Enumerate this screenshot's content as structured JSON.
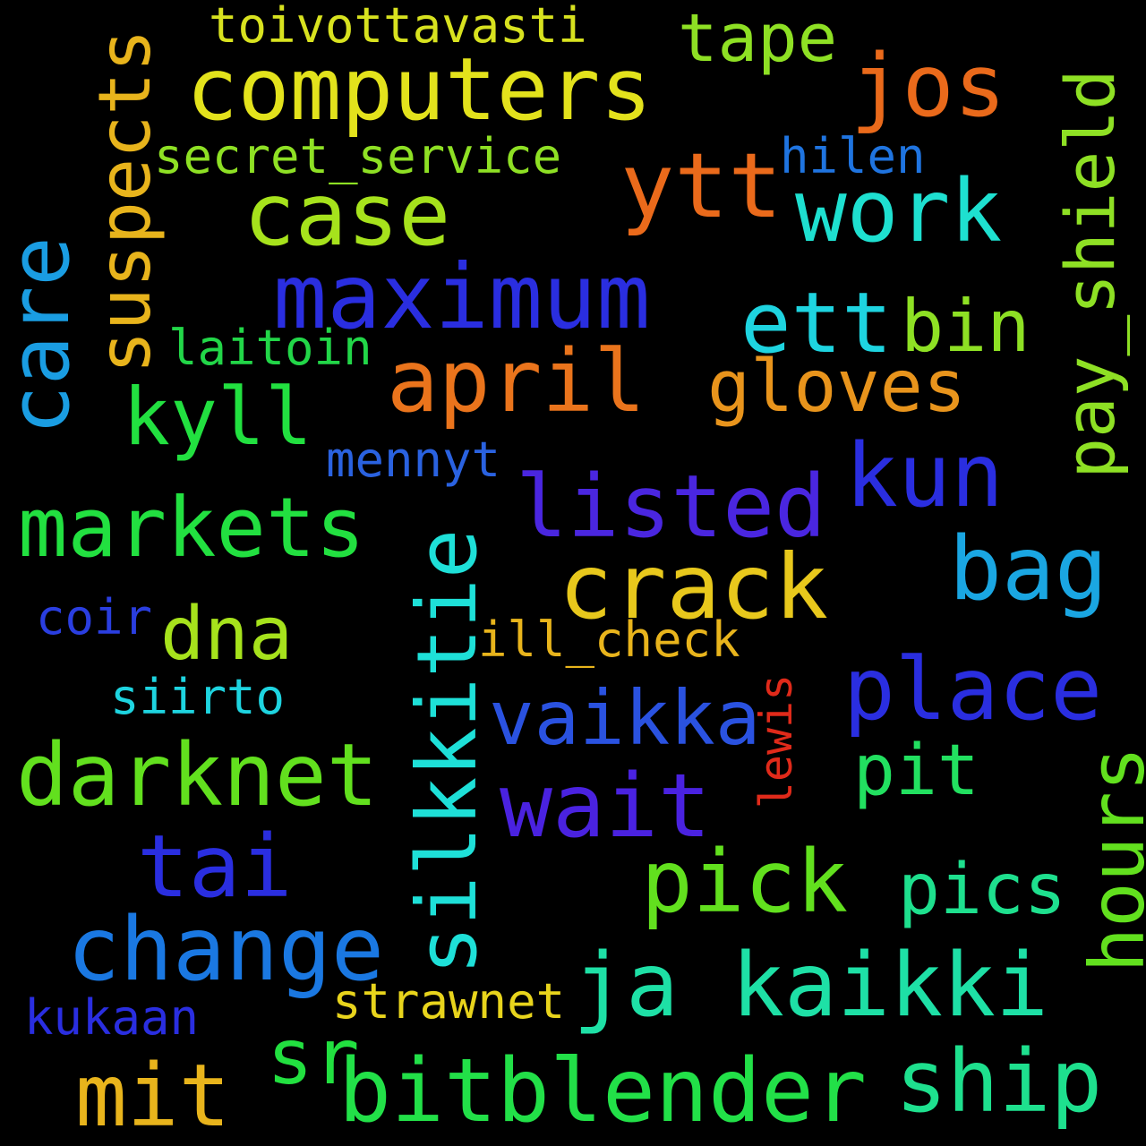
{
  "words": [
    {
      "text": "toivottavasti",
      "color": "#d8e21f"
    },
    {
      "text": "computers",
      "color": "#e3e21c"
    },
    {
      "text": "tape",
      "color": "#8ee024"
    },
    {
      "text": "jos",
      "color": "#ea6a1b"
    },
    {
      "text": "secret_service",
      "color": "#8ee024"
    },
    {
      "text": "hilen",
      "color": "#1f74e0"
    },
    {
      "text": "ytt",
      "color": "#ea6a1b"
    },
    {
      "text": "case",
      "color": "#a6e21c"
    },
    {
      "text": "work",
      "color": "#1ee0d0"
    },
    {
      "text": "suspects",
      "color": "#e8b41c"
    },
    {
      "text": "care",
      "color": "#1a9de2"
    },
    {
      "text": "maximum",
      "color": "#2a2ee0"
    },
    {
      "text": "ett",
      "color": "#1ed4e0"
    },
    {
      "text": "bin",
      "color": "#8ee024"
    },
    {
      "text": "pay_shield",
      "color": "#8ee024"
    },
    {
      "text": "laitoin",
      "color": "#22d648"
    },
    {
      "text": "april",
      "color": "#ea741c"
    },
    {
      "text": "gloves",
      "color": "#e8941c"
    },
    {
      "text": "kyll",
      "color": "#22e040"
    },
    {
      "text": "mennyt",
      "color": "#2a62e0"
    },
    {
      "text": "kun",
      "color": "#2a2ee0"
    },
    {
      "text": "listed",
      "color": "#4a26e0"
    },
    {
      "text": "markets",
      "color": "#22e040"
    },
    {
      "text": "silkkitie",
      "color": "#1ee0d8"
    },
    {
      "text": "crack",
      "color": "#e8c81c"
    },
    {
      "text": "bag",
      "color": "#1aa6e2"
    },
    {
      "text": "coir",
      "color": "#2a3ee0"
    },
    {
      "text": "dna",
      "color": "#a6e21c"
    },
    {
      "text": "ill_check",
      "color": "#e8b41c"
    },
    {
      "text": "place",
      "color": "#2a2ee0"
    },
    {
      "text": "siirto",
      "color": "#1ed4e0"
    },
    {
      "text": "vaikka",
      "color": "#2a52e0"
    },
    {
      "text": "lewis",
      "color": "#e02a1a"
    },
    {
      "text": "darknet",
      "color": "#62e01e"
    },
    {
      "text": "pit",
      "color": "#22e060"
    },
    {
      "text": "hours",
      "color": "#62e01e"
    },
    {
      "text": "wait",
      "color": "#4a22e0"
    },
    {
      "text": "tai",
      "color": "#2a2ee0"
    },
    {
      "text": "pick",
      "color": "#62e01e"
    },
    {
      "text": "pics",
      "color": "#1ee08e"
    },
    {
      "text": "change",
      "color": "#1a78e2"
    },
    {
      "text": "ja kaikki",
      "color": "#1ee0a6"
    },
    {
      "text": "strawnet",
      "color": "#e8d41c"
    },
    {
      "text": "kukaan",
      "color": "#2a2ee0"
    },
    {
      "text": "sr",
      "color": "#22e040"
    },
    {
      "text": "mit",
      "color": "#e8b41c"
    },
    {
      "text": "bitblender",
      "color": "#22e048"
    },
    {
      "text": "ship",
      "color": "#1ee08e"
    }
  ]
}
